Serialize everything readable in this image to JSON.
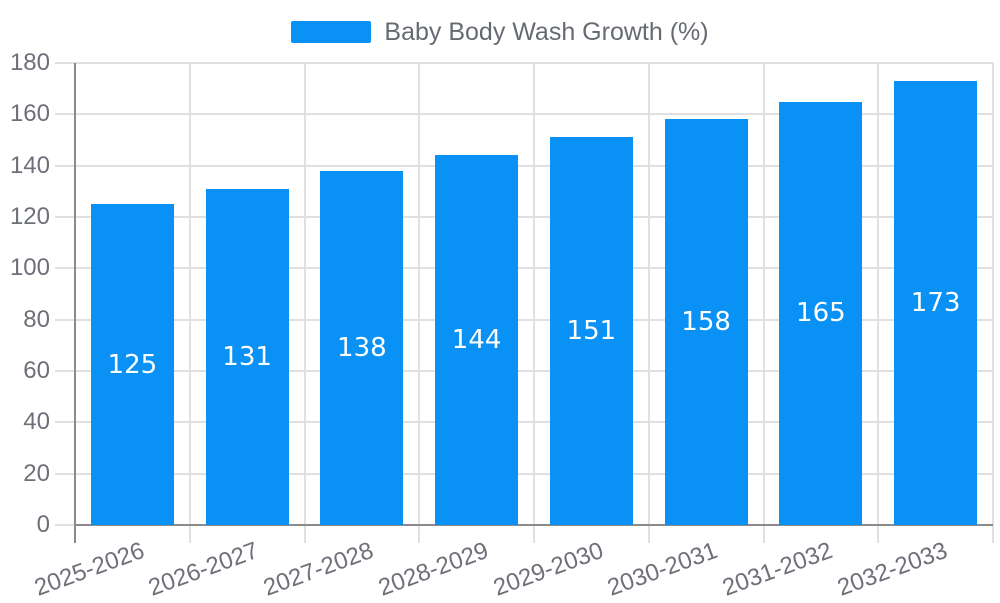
{
  "colors": {
    "bar": "#0A91F5",
    "grid": "#E0E0E0",
    "axis": "#8A8A8A",
    "tick_text": "#6E7079",
    "legend_text": "#666B73",
    "value_text": "#FFFFFF",
    "background": "#FFFFFF"
  },
  "legend": {
    "label": "Baby Body Wash Growth (%)"
  },
  "chart_data": {
    "type": "bar",
    "title": "Baby Body Wash Growth (%)",
    "categories": [
      "2025-2026",
      "2026-2027",
      "2027-2028",
      "2028-2029",
      "2029-2030",
      "2030-2031",
      "2031-2032",
      "2032-2033"
    ],
    "values": [
      125,
      131,
      138,
      144,
      151,
      158,
      165,
      173
    ],
    "xlabel": "",
    "ylabel": "",
    "ylim": [
      0,
      180
    ],
    "ytick_step": 20,
    "yticks": [
      0,
      20,
      40,
      60,
      80,
      100,
      120,
      140,
      160,
      180
    ],
    "grid": "on",
    "legend_position": "top-center",
    "x_label_rotation_deg": -20,
    "value_label_position": "inside-center"
  }
}
